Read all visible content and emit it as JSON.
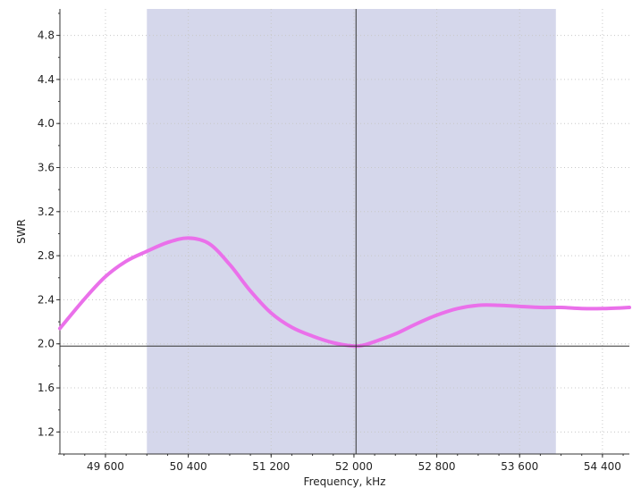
{
  "chart_data": {
    "type": "line",
    "xlabel": "Frequency, kHz",
    "ylabel": "SWR",
    "xlim": [
      49160,
      54660
    ],
    "ylim": [
      1.0,
      5.04
    ],
    "x_ticks": [
      49600,
      50400,
      51200,
      52000,
      52800,
      53600,
      54400
    ],
    "x_tick_labels": [
      "49 600",
      "50 400",
      "51 200",
      "52 000",
      "52 800",
      "53 600",
      "54 400"
    ],
    "y_ticks": [
      1.2,
      1.6,
      2.0,
      2.4,
      2.8,
      3.2,
      3.6,
      4.0,
      4.4,
      4.8
    ],
    "y_tick_labels": [
      "1.2",
      "1.6",
      "2.0",
      "2.4",
      "2.8",
      "3.2",
      "3.6",
      "4.0",
      "4.4",
      "4.8"
    ],
    "grid": true,
    "band": {
      "x_start": 50000,
      "x_end": 53950,
      "color": "#d5d7eb"
    },
    "cursor": {
      "x": 52020,
      "y": 1.98,
      "color": "#333333"
    },
    "series": [
      {
        "color": "#ea70ea",
        "x": [
          49160,
          49400,
          49600,
          49800,
          50000,
          50200,
          50400,
          50600,
          50800,
          51000,
          51200,
          51400,
          51600,
          51800,
          52000,
          52100,
          52200,
          52400,
          52600,
          52800,
          53000,
          53200,
          53400,
          53600,
          53800,
          54000,
          54200,
          54400,
          54660
        ],
        "y": [
          2.14,
          2.41,
          2.61,
          2.75,
          2.84,
          2.92,
          2.96,
          2.91,
          2.72,
          2.48,
          2.28,
          2.15,
          2.07,
          2.01,
          1.98,
          1.99,
          2.02,
          2.09,
          2.18,
          2.26,
          2.32,
          2.35,
          2.35,
          2.34,
          2.33,
          2.33,
          2.32,
          2.32,
          2.33
        ]
      }
    ]
  }
}
